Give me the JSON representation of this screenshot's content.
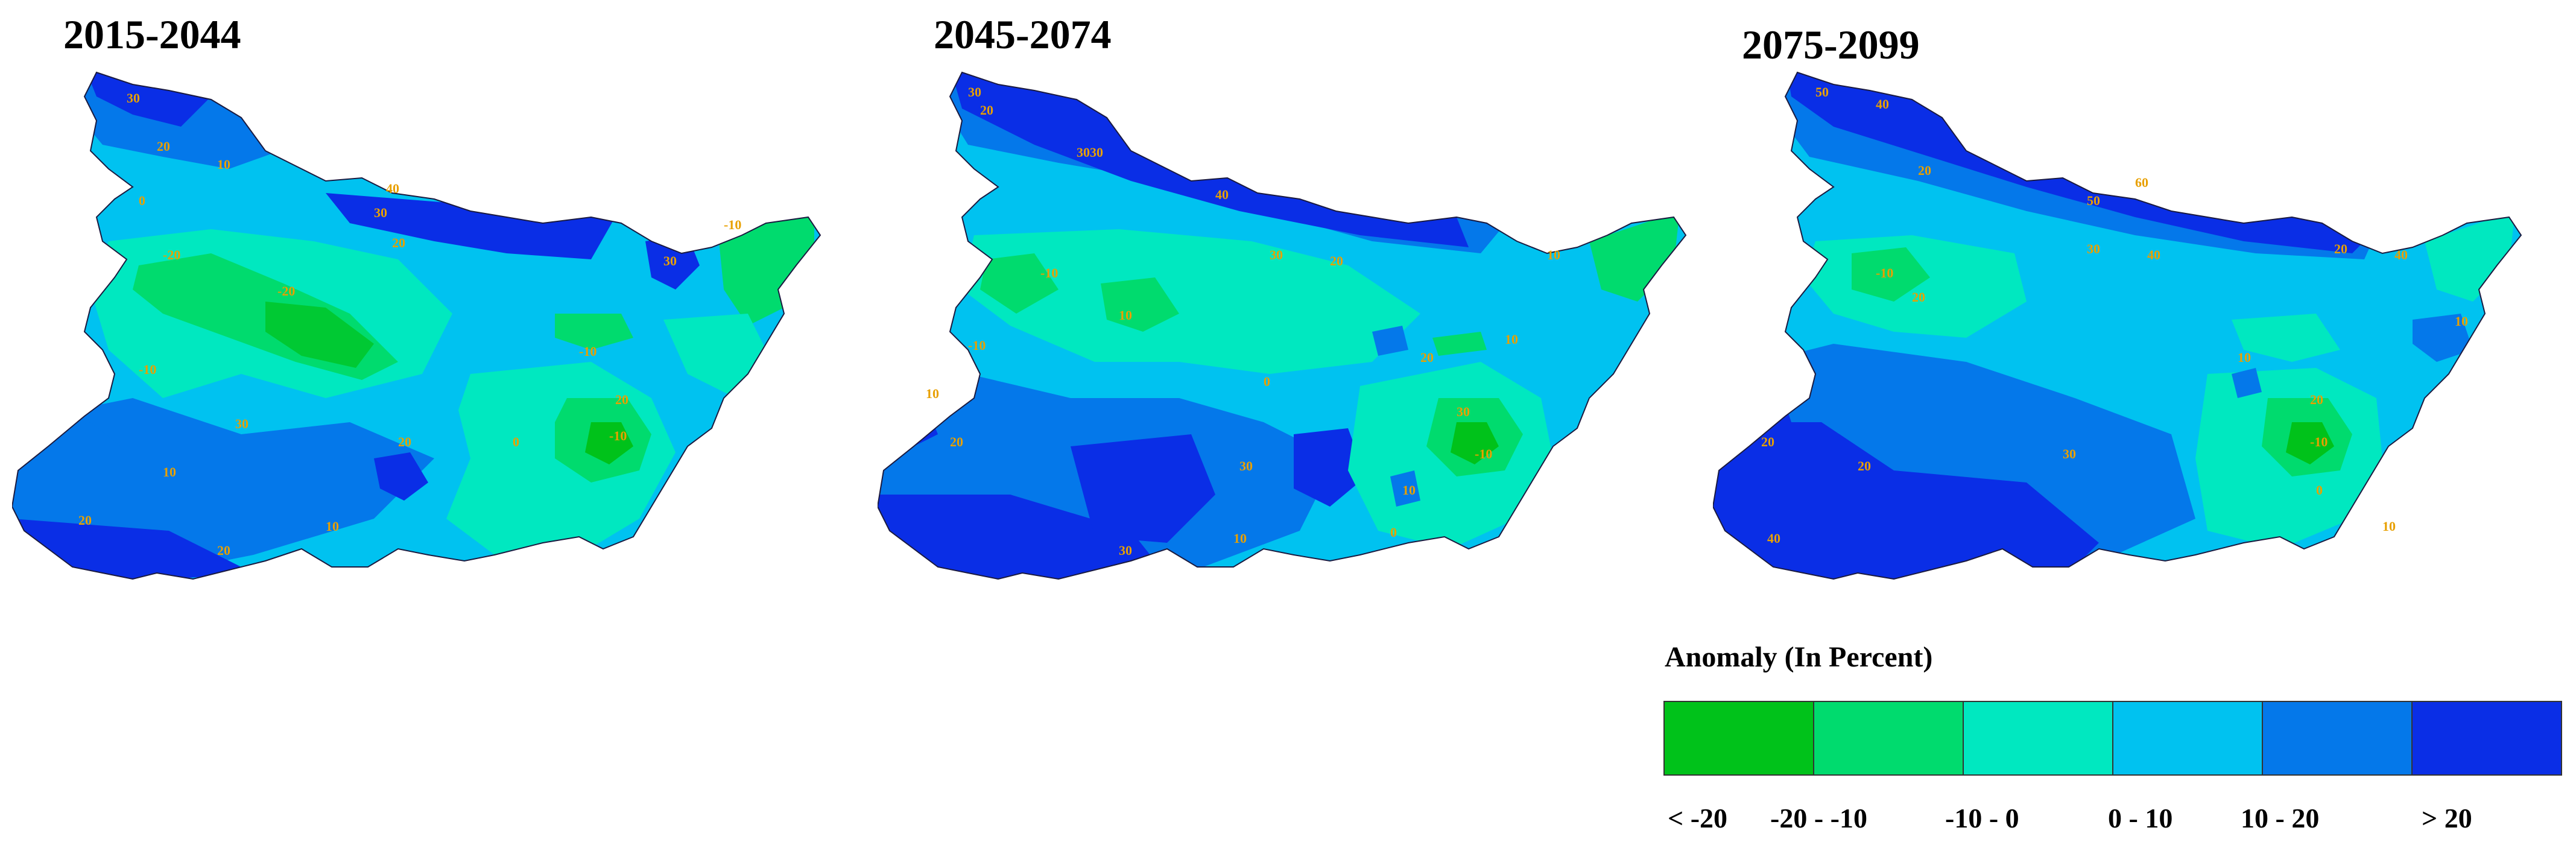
{
  "panels": [
    {
      "title": "2015-2044"
    },
    {
      "title": "2045-2074"
    },
    {
      "title": "2075-2099"
    }
  ],
  "legend": {
    "title": "Anomaly (In Percent)",
    "classes": [
      {
        "label": "< -20",
        "color": "#00c21a"
      },
      {
        "label": "-20 - -10",
        "color": "#00db6e"
      },
      {
        "label": "-10 - 0",
        "color": "#00e8c0"
      },
      {
        "label": "0 - 10",
        "color": "#00c2f0"
      },
      {
        "label": "10 - 20",
        "color": "#0478ea"
      },
      {
        "label": "> 20",
        "color": "#0a2ee6"
      }
    ]
  },
  "contour_labels": {
    "map1": [
      "30",
      "20",
      "10",
      "0",
      "40",
      "30",
      "20",
      "-10",
      "-20",
      "-10",
      "30",
      "-10",
      "20",
      "10",
      "20",
      "30",
      "-20",
      "-10",
      "20",
      "10",
      "20",
      "0"
    ],
    "map2": [
      "30",
      "20",
      "3030",
      "40",
      "30",
      "20",
      "10",
      "-10",
      "10",
      "-10",
      "10",
      "0",
      "20",
      "30",
      "-10",
      "30",
      "20",
      "10",
      "30",
      "10",
      "0",
      "10"
    ],
    "map3": [
      "50",
      "40",
      "20",
      "60",
      "50",
      "40",
      "30",
      "20",
      "40",
      "10",
      "-10",
      "20",
      "-10",
      "20",
      "20",
      "30",
      "40",
      "20",
      "10",
      "0",
      "10"
    ]
  }
}
